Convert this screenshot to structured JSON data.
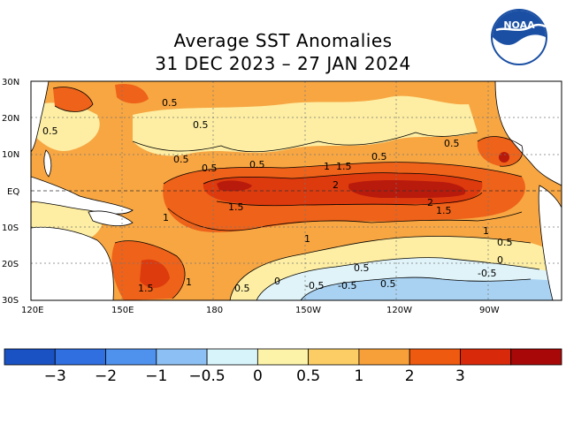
{
  "title": "Average SST Anomalies",
  "subtitle": "31 DEC 2023 – 27 JAN 2024",
  "logo_text": "NOAA",
  "lat_labels": [
    "30N",
    "20N",
    "10N",
    "EQ",
    "10S",
    "20S",
    "30S"
  ],
  "lon_labels": [
    "120E",
    "150E",
    "180",
    "150W",
    "120W",
    "90W"
  ],
  "contour_labels": [
    "0.5",
    "0.5",
    "0.5",
    "0.5",
    "0.5",
    "0.5",
    "0.5",
    "0.5",
    "1",
    "1.5",
    "2",
    "1.5",
    "2",
    "1.5",
    "1",
    "1",
    "1",
    "0.5",
    "0",
    "-0.5",
    "-0.5",
    "-0.5",
    "0.5",
    "0.5",
    "1.5",
    "1",
    "0.5",
    "0"
  ],
  "colorbar": {
    "colors": [
      "#1a52c4",
      "#2f6fe0",
      "#4f92ee",
      "#8cc0f4",
      "#d8f4fb",
      "#fdf3a8",
      "#fbcd64",
      "#f7a03a",
      "#ee5a10",
      "#d82a0a",
      "#a80808"
    ],
    "tick_labels": [
      "−3",
      "−2",
      "−1",
      "−0.5",
      "0",
      "0.5",
      "1",
      "2",
      "3"
    ]
  },
  "colors": {
    "ocean_base": "#f7a642",
    "warm1": "#ee6219",
    "warm2": "#dd3a0e",
    "warm3": "#b81a0c",
    "cool0": "#fdeea3",
    "cool1": "#dff3f8",
    "cool2": "#a9d2f2",
    "land": "#ffffff"
  }
}
